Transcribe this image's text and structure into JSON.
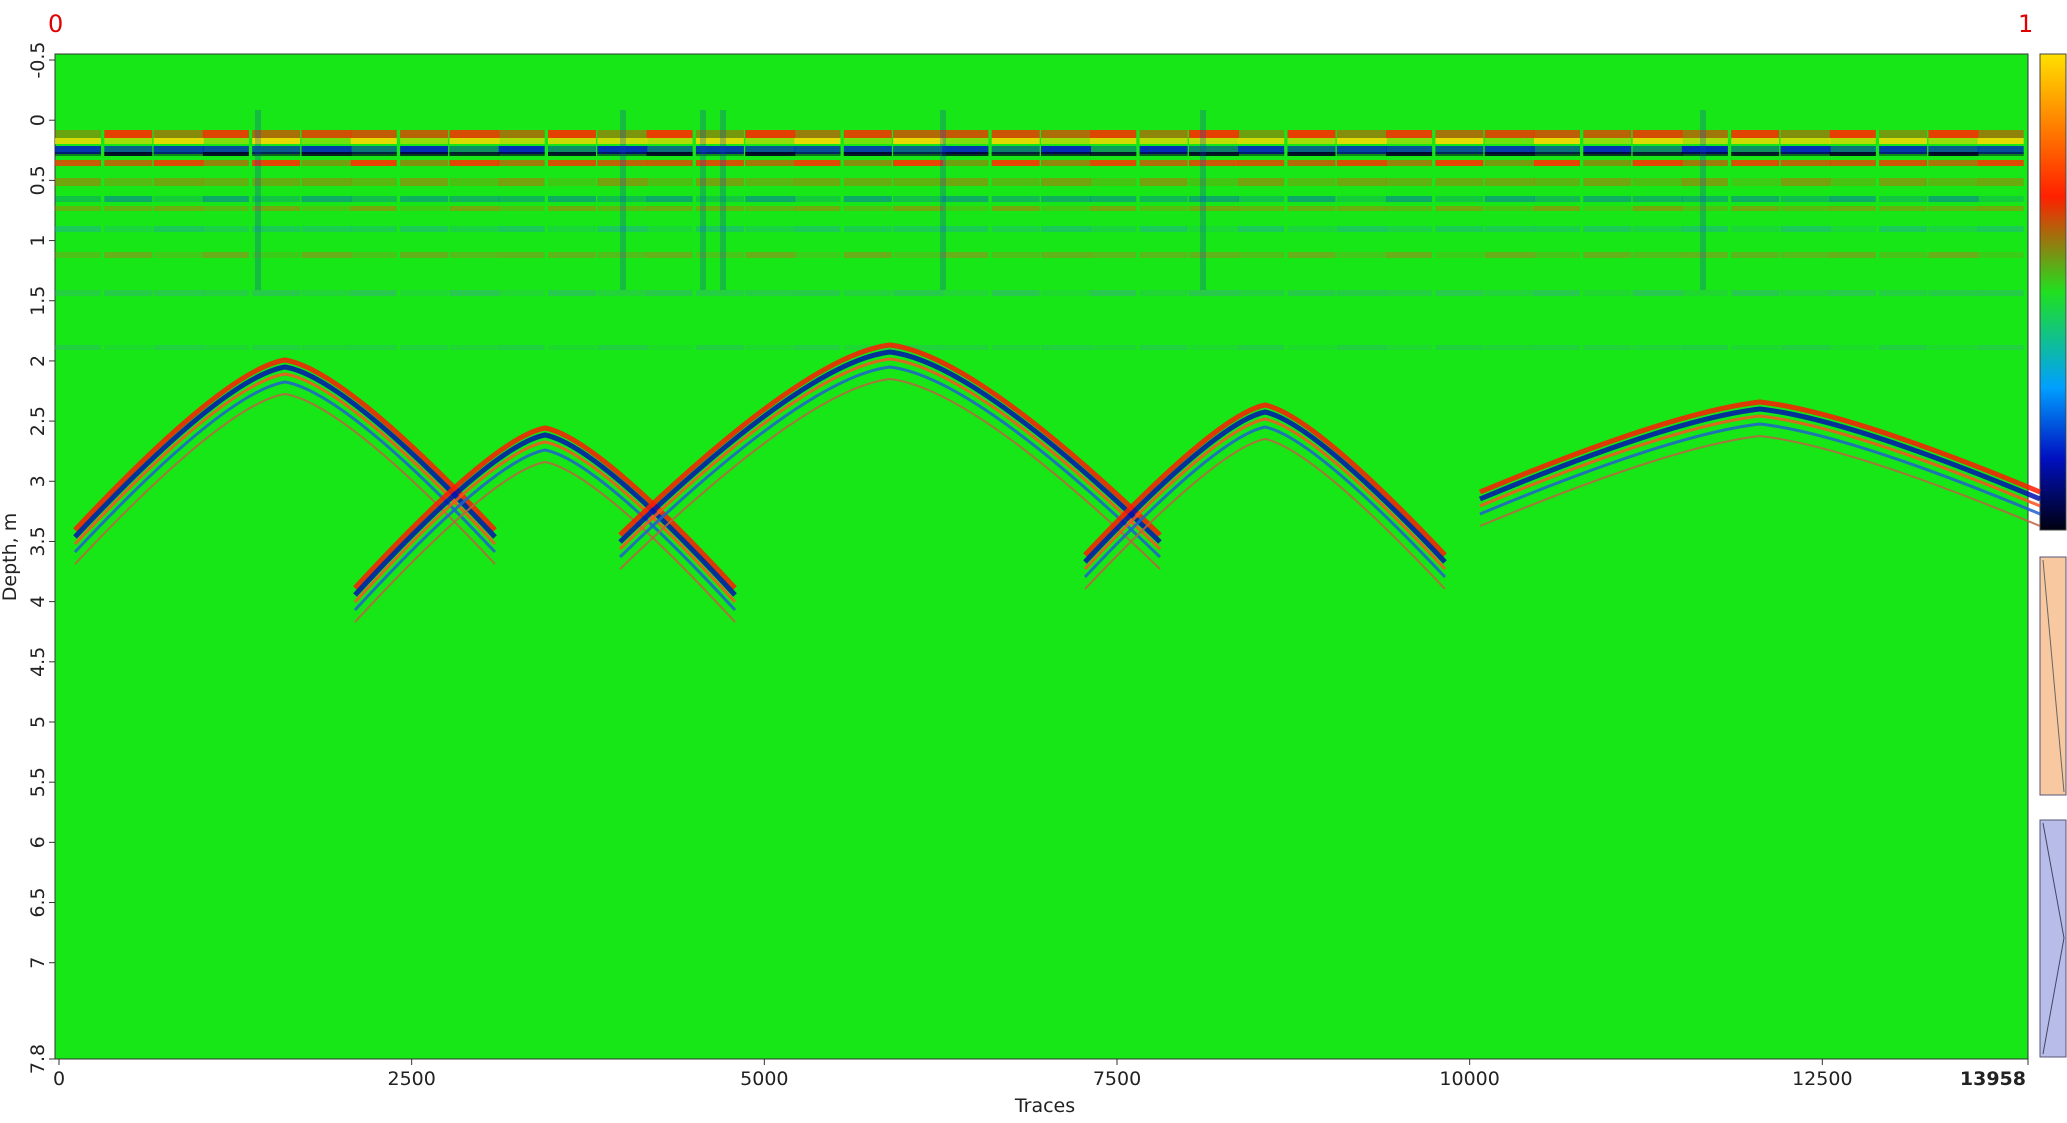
{
  "chart_data": {
    "type": "radargram",
    "x_label": "Traces",
    "y_label": "Depth, m",
    "corner_left": "0",
    "corner_right": "1",
    "xlim": [
      0,
      13958
    ],
    "xticks": [
      0,
      2500,
      5000,
      7500,
      10000,
      12500,
      13958
    ],
    "ylim": [
      -0.55,
      7.8
    ],
    "yticks": [
      -0.5,
      0,
      0.5,
      1,
      1.5,
      2,
      2.5,
      3,
      3.5,
      4,
      4.5,
      5,
      5.5,
      6,
      6.5,
      7,
      7.8
    ],
    "background_color": "#17e617"
  }
}
